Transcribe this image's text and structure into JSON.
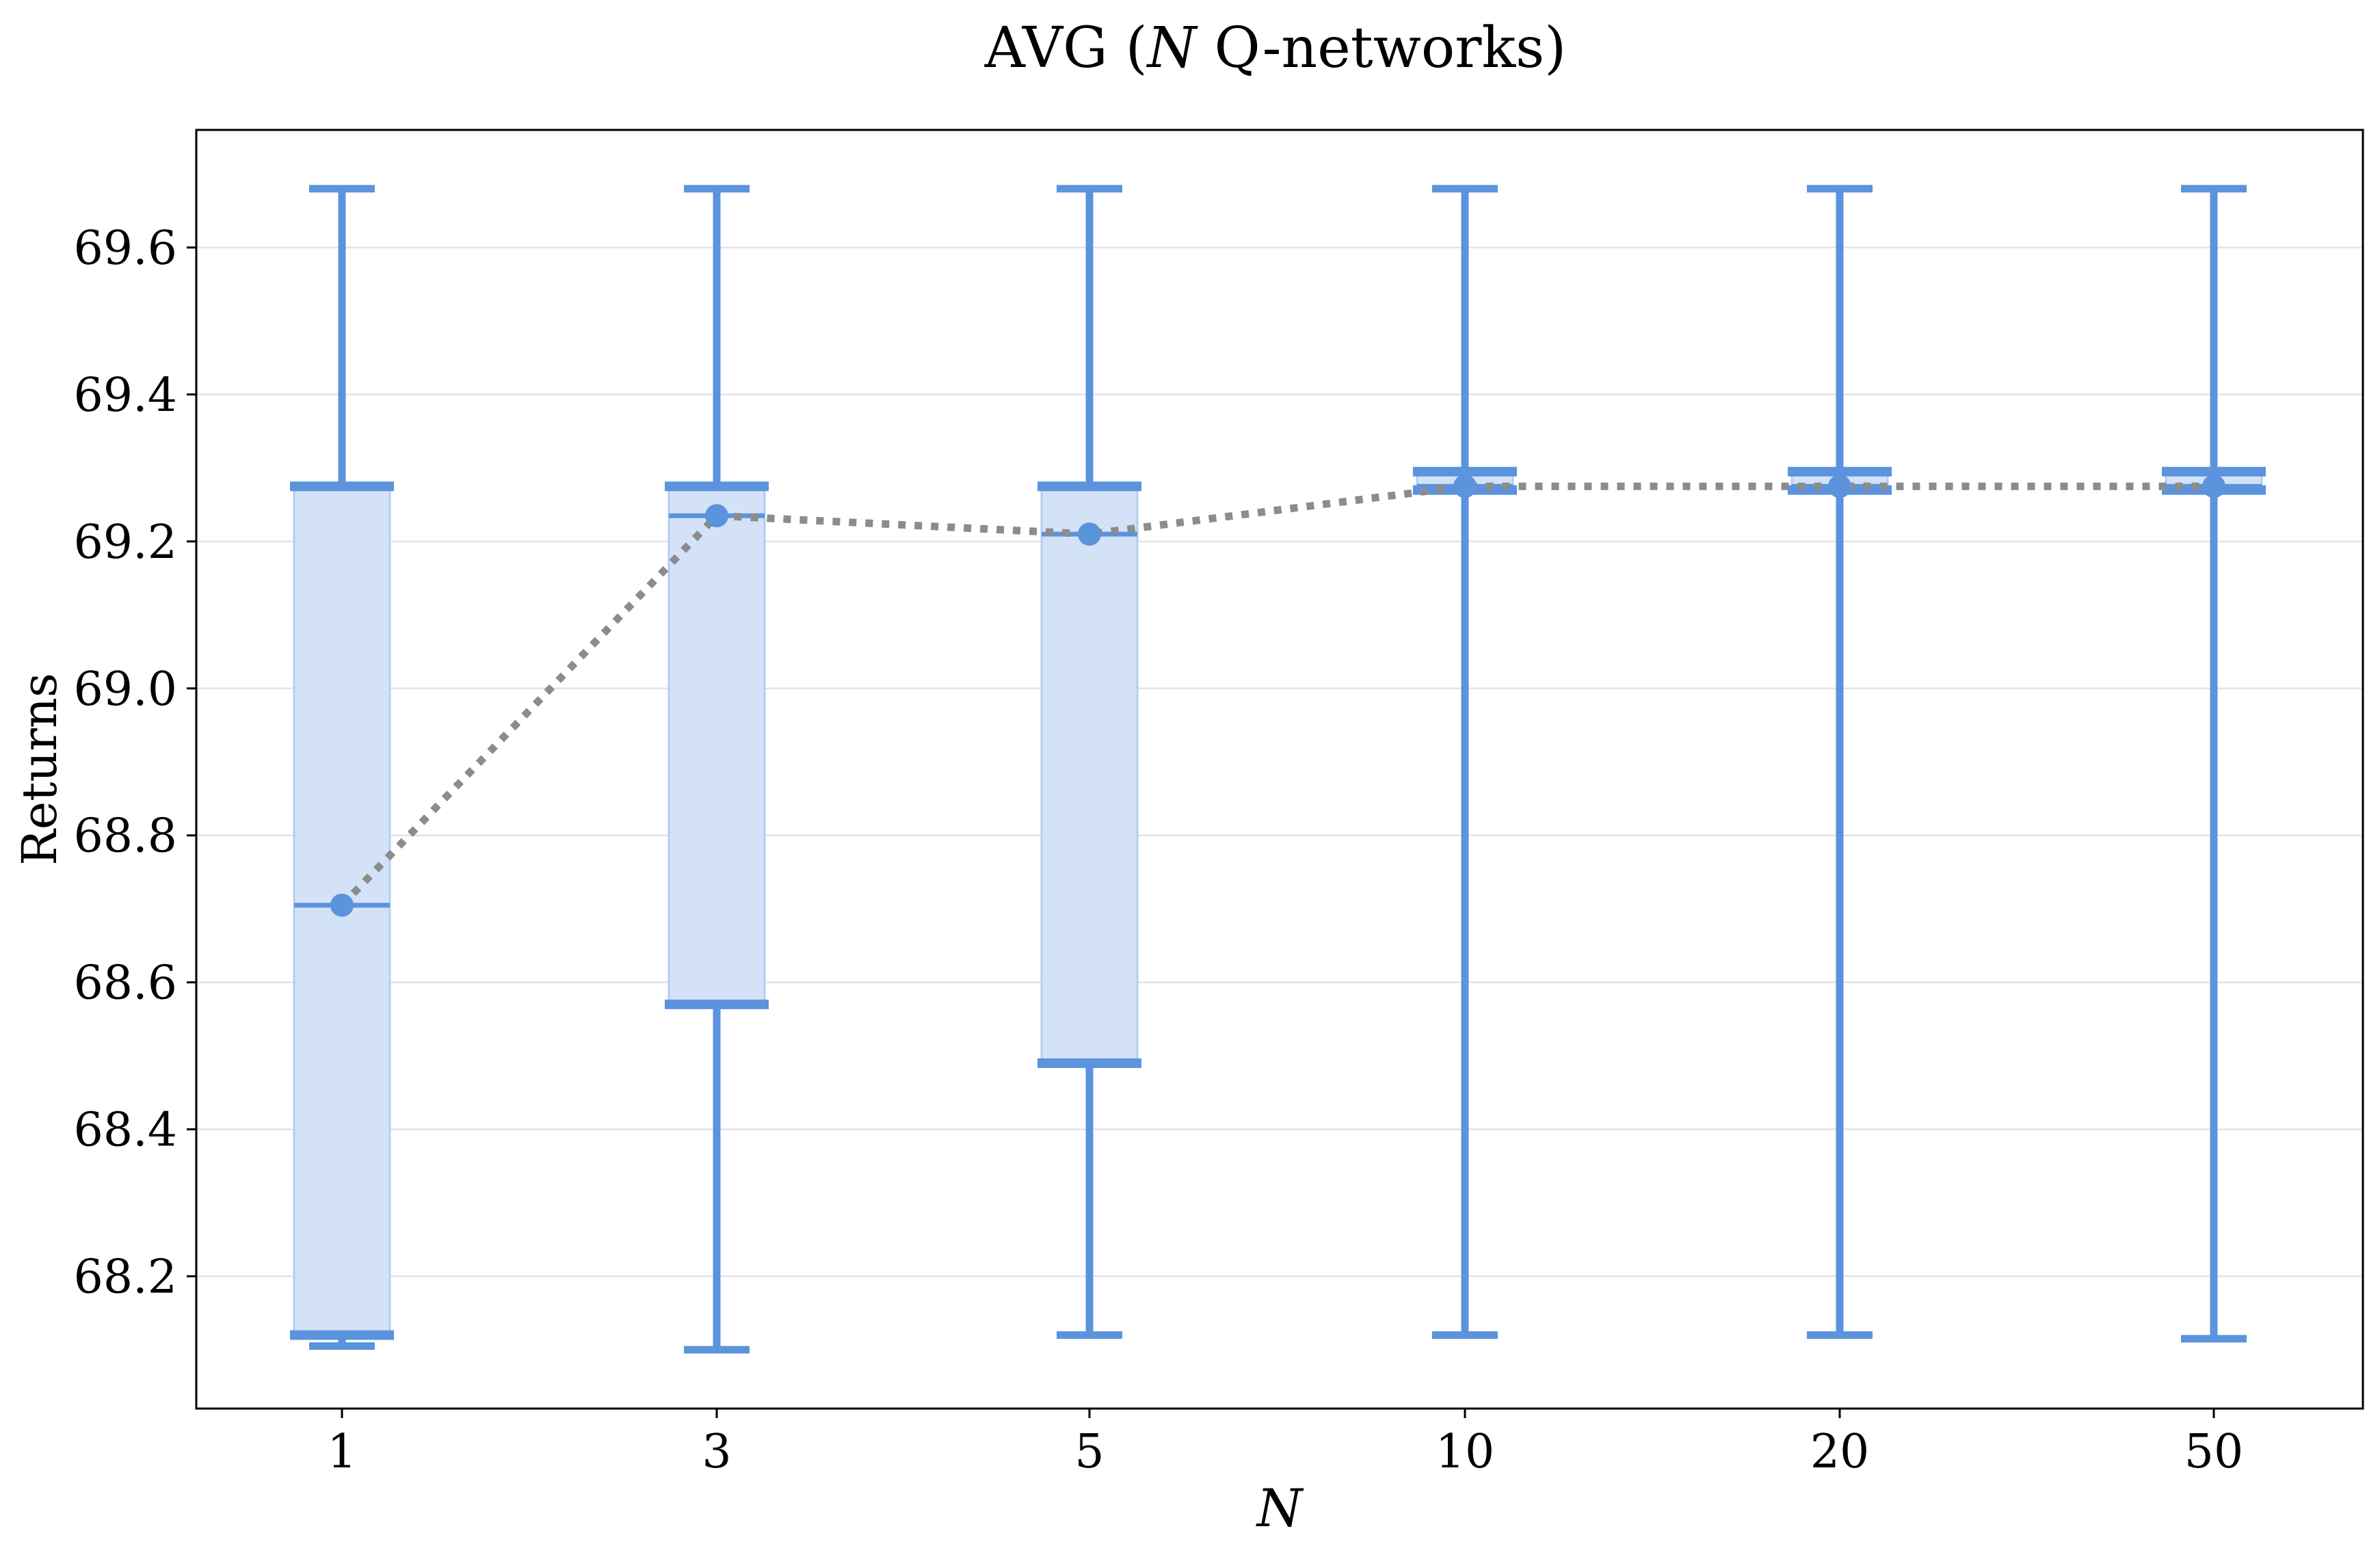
{
  "chart_data": {
    "type": "boxplot",
    "title_parts": [
      "AVG (",
      "N",
      " Q-networks)"
    ],
    "xlabel": "N",
    "ylabel": "Returns",
    "categories": [
      "1",
      "3",
      "5",
      "10",
      "20",
      "50"
    ],
    "yticks": [
      "68.2",
      "68.4",
      "68.6",
      "68.8",
      "69.0",
      "69.2",
      "69.4",
      "69.6"
    ],
    "ylim": [
      68.02,
      69.76
    ],
    "grid": "horizontal",
    "series": [
      {
        "values_whisker_low": [
          68.105,
          68.1,
          68.12,
          68.12,
          68.12,
          68.115
        ],
        "values_q1": [
          68.12,
          68.57,
          68.49,
          69.27,
          69.27,
          69.27
        ],
        "values_median": [
          68.705,
          69.235,
          69.21,
          69.275,
          69.275,
          69.275
        ],
        "values_q3": [
          69.275,
          69.275,
          69.275,
          69.295,
          69.295,
          69.295
        ],
        "values_whisker_high": [
          69.68,
          69.68,
          69.68,
          69.68,
          69.68,
          69.68
        ],
        "values_mean": [
          68.705,
          69.235,
          69.21,
          69.275,
          69.275,
          69.275
        ]
      }
    ],
    "colors": {
      "box_edge": "#5b93dc",
      "box_fill": "#d4e2f7",
      "mean_line": "#8c8c8c",
      "grid": "#e3e3e3"
    }
  }
}
